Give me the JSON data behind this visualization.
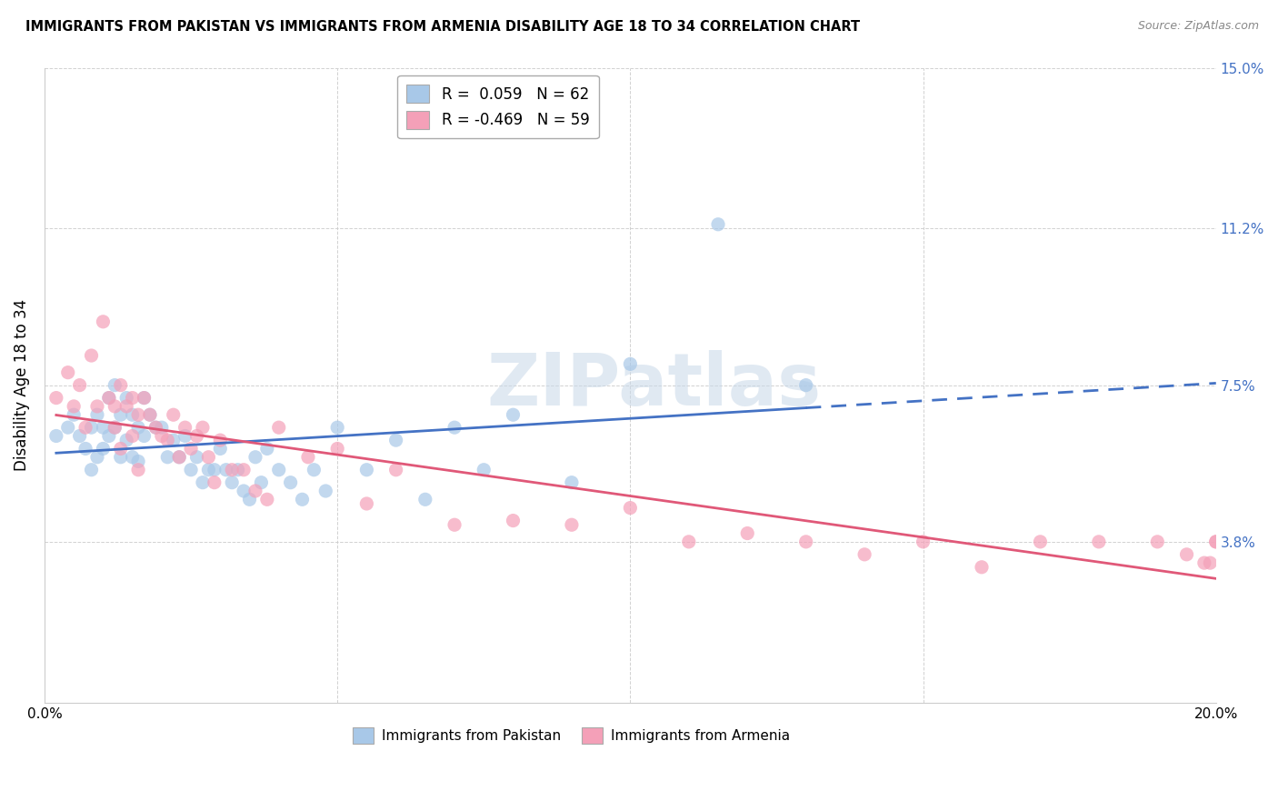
{
  "title": "IMMIGRANTS FROM PAKISTAN VS IMMIGRANTS FROM ARMENIA DISABILITY AGE 18 TO 34 CORRELATION CHART",
  "source": "Source: ZipAtlas.com",
  "ylabel": "Disability Age 18 to 34",
  "xlim": [
    0.0,
    0.2
  ],
  "ylim": [
    0.0,
    0.15
  ],
  "yticks": [
    0.038,
    0.075,
    0.112,
    0.15
  ],
  "ytick_labels": [
    "3.8%",
    "7.5%",
    "11.2%",
    "15.0%"
  ],
  "xticks": [
    0.0,
    0.05,
    0.1,
    0.15,
    0.2
  ],
  "xtick_labels": [
    "0.0%",
    "",
    "",
    "",
    "20.0%"
  ],
  "legend_pak_R": "0.059",
  "legend_pak_N": "62",
  "legend_arm_R": "-0.469",
  "legend_arm_N": "59",
  "color_pakistan": "#a8c8e8",
  "color_armenia": "#f4a0b8",
  "color_pakistan_line": "#4472c4",
  "color_armenia_line": "#e05878",
  "watermark": "ZIPatlas",
  "pakistan_x": [
    0.002,
    0.004,
    0.005,
    0.006,
    0.007,
    0.008,
    0.008,
    0.009,
    0.009,
    0.01,
    0.01,
    0.011,
    0.011,
    0.012,
    0.012,
    0.013,
    0.013,
    0.014,
    0.014,
    0.015,
    0.015,
    0.016,
    0.016,
    0.017,
    0.017,
    0.018,
    0.019,
    0.02,
    0.021,
    0.022,
    0.023,
    0.024,
    0.025,
    0.026,
    0.027,
    0.028,
    0.029,
    0.03,
    0.031,
    0.032,
    0.033,
    0.034,
    0.035,
    0.036,
    0.037,
    0.038,
    0.04,
    0.042,
    0.044,
    0.046,
    0.048,
    0.05,
    0.055,
    0.06,
    0.065,
    0.07,
    0.075,
    0.08,
    0.09,
    0.1,
    0.115,
    0.13
  ],
  "pakistan_y": [
    0.063,
    0.065,
    0.068,
    0.063,
    0.06,
    0.065,
    0.055,
    0.068,
    0.058,
    0.065,
    0.06,
    0.072,
    0.063,
    0.075,
    0.065,
    0.068,
    0.058,
    0.072,
    0.062,
    0.068,
    0.058,
    0.065,
    0.057,
    0.072,
    0.063,
    0.068,
    0.065,
    0.065,
    0.058,
    0.062,
    0.058,
    0.063,
    0.055,
    0.058,
    0.052,
    0.055,
    0.055,
    0.06,
    0.055,
    0.052,
    0.055,
    0.05,
    0.048,
    0.058,
    0.052,
    0.06,
    0.055,
    0.052,
    0.048,
    0.055,
    0.05,
    0.065,
    0.055,
    0.062,
    0.048,
    0.065,
    0.055,
    0.068,
    0.052,
    0.08,
    0.113,
    0.075
  ],
  "armenia_x": [
    0.002,
    0.004,
    0.005,
    0.006,
    0.007,
    0.008,
    0.009,
    0.01,
    0.011,
    0.012,
    0.012,
    0.013,
    0.013,
    0.014,
    0.015,
    0.015,
    0.016,
    0.016,
    0.017,
    0.018,
    0.019,
    0.02,
    0.021,
    0.022,
    0.023,
    0.024,
    0.025,
    0.026,
    0.027,
    0.028,
    0.029,
    0.03,
    0.032,
    0.034,
    0.036,
    0.038,
    0.04,
    0.045,
    0.05,
    0.055,
    0.06,
    0.07,
    0.08,
    0.09,
    0.1,
    0.11,
    0.12,
    0.13,
    0.14,
    0.15,
    0.16,
    0.17,
    0.18,
    0.19,
    0.195,
    0.198,
    0.199,
    0.2,
    0.2
  ],
  "armenia_y": [
    0.072,
    0.078,
    0.07,
    0.075,
    0.065,
    0.082,
    0.07,
    0.09,
    0.072,
    0.065,
    0.07,
    0.075,
    0.06,
    0.07,
    0.072,
    0.063,
    0.068,
    0.055,
    0.072,
    0.068,
    0.065,
    0.063,
    0.062,
    0.068,
    0.058,
    0.065,
    0.06,
    0.063,
    0.065,
    0.058,
    0.052,
    0.062,
    0.055,
    0.055,
    0.05,
    0.048,
    0.065,
    0.058,
    0.06,
    0.047,
    0.055,
    0.042,
    0.043,
    0.042,
    0.046,
    0.038,
    0.04,
    0.038,
    0.035,
    0.038,
    0.032,
    0.038,
    0.038,
    0.038,
    0.035,
    0.033,
    0.033,
    0.038,
    0.038
  ]
}
